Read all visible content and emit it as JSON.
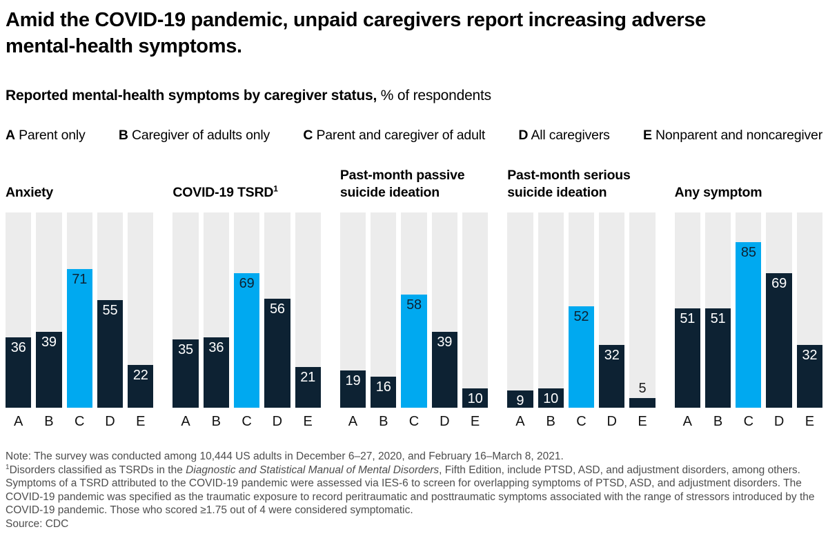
{
  "title": "Amid the COVID-19 pandemic, unpaid caregivers report increasing adverse mental-health symptoms.",
  "subtitle": {
    "bold": "Reported mental-health symptoms by caregiver status,",
    "regular": "% of respondents"
  },
  "legend": {
    "items": [
      {
        "letter": "A",
        "label": "Parent only"
      },
      {
        "letter": "B",
        "label": "Caregiver of adults only"
      },
      {
        "letter": "C",
        "label": "Parent and caregiver of adult"
      },
      {
        "letter": "D",
        "label": "All caregivers"
      },
      {
        "letter": "E",
        "label": "Nonparent and noncaregiver"
      }
    ]
  },
  "chart_data": {
    "type": "bar",
    "unit": "% of respondents",
    "categories": [
      "A",
      "B",
      "C",
      "D",
      "E"
    ],
    "ymax": 100,
    "highlight_category": "C",
    "grid": false,
    "colors": {
      "bar": "#0d2233",
      "highlight": "#00a9f0",
      "track": "#ececec",
      "label_on_bar": "#ffffff",
      "label_on_highlight": "#0d2233",
      "label_outside": "#1a1a1a"
    },
    "groups": [
      {
        "title": "Anxiety",
        "values": [
          36,
          39,
          71,
          55,
          22
        ]
      },
      {
        "title": "COVID-19 TSRD",
        "title_sup": "1",
        "values": [
          35,
          36,
          69,
          56,
          21
        ]
      },
      {
        "title": "Past-month passive suicide ideation",
        "values": [
          19,
          16,
          58,
          39,
          10
        ]
      },
      {
        "title": "Past-month serious suicide ideation",
        "values": [
          9,
          10,
          52,
          32,
          5
        ]
      },
      {
        "title": "Any symptom",
        "values": [
          51,
          51,
          85,
          69,
          32
        ]
      }
    ]
  },
  "note": {
    "line1": "Note: The survey was conducted among 10,444 US adults in December 6–27, 2020, and February 16–March 8, 2021.",
    "footnote_sup": "1",
    "footnote_pre": "Disorders classified as TSRDs in the ",
    "footnote_italic": "Diagnostic and Statistical Manual of Mental Disorders",
    "footnote_post": ", Fifth Edition, include PTSD, ASD, and adjustment disorders, among others. Symptoms of a TSRD attributed to the COVID-19 pandemic were assessed via IES-6 to screen for overlapping symptoms of PTSD, ASD, and adjustment disorders. The COVID-19 pandemic was specified as the traumatic exposure to record peritraumatic and posttraumatic symptoms associated with the range of stressors introduced by the COVID-19 pandemic. Those who scored ≥1.75 out of 4 were considered symptomatic.",
    "source": "Source: CDC"
  }
}
